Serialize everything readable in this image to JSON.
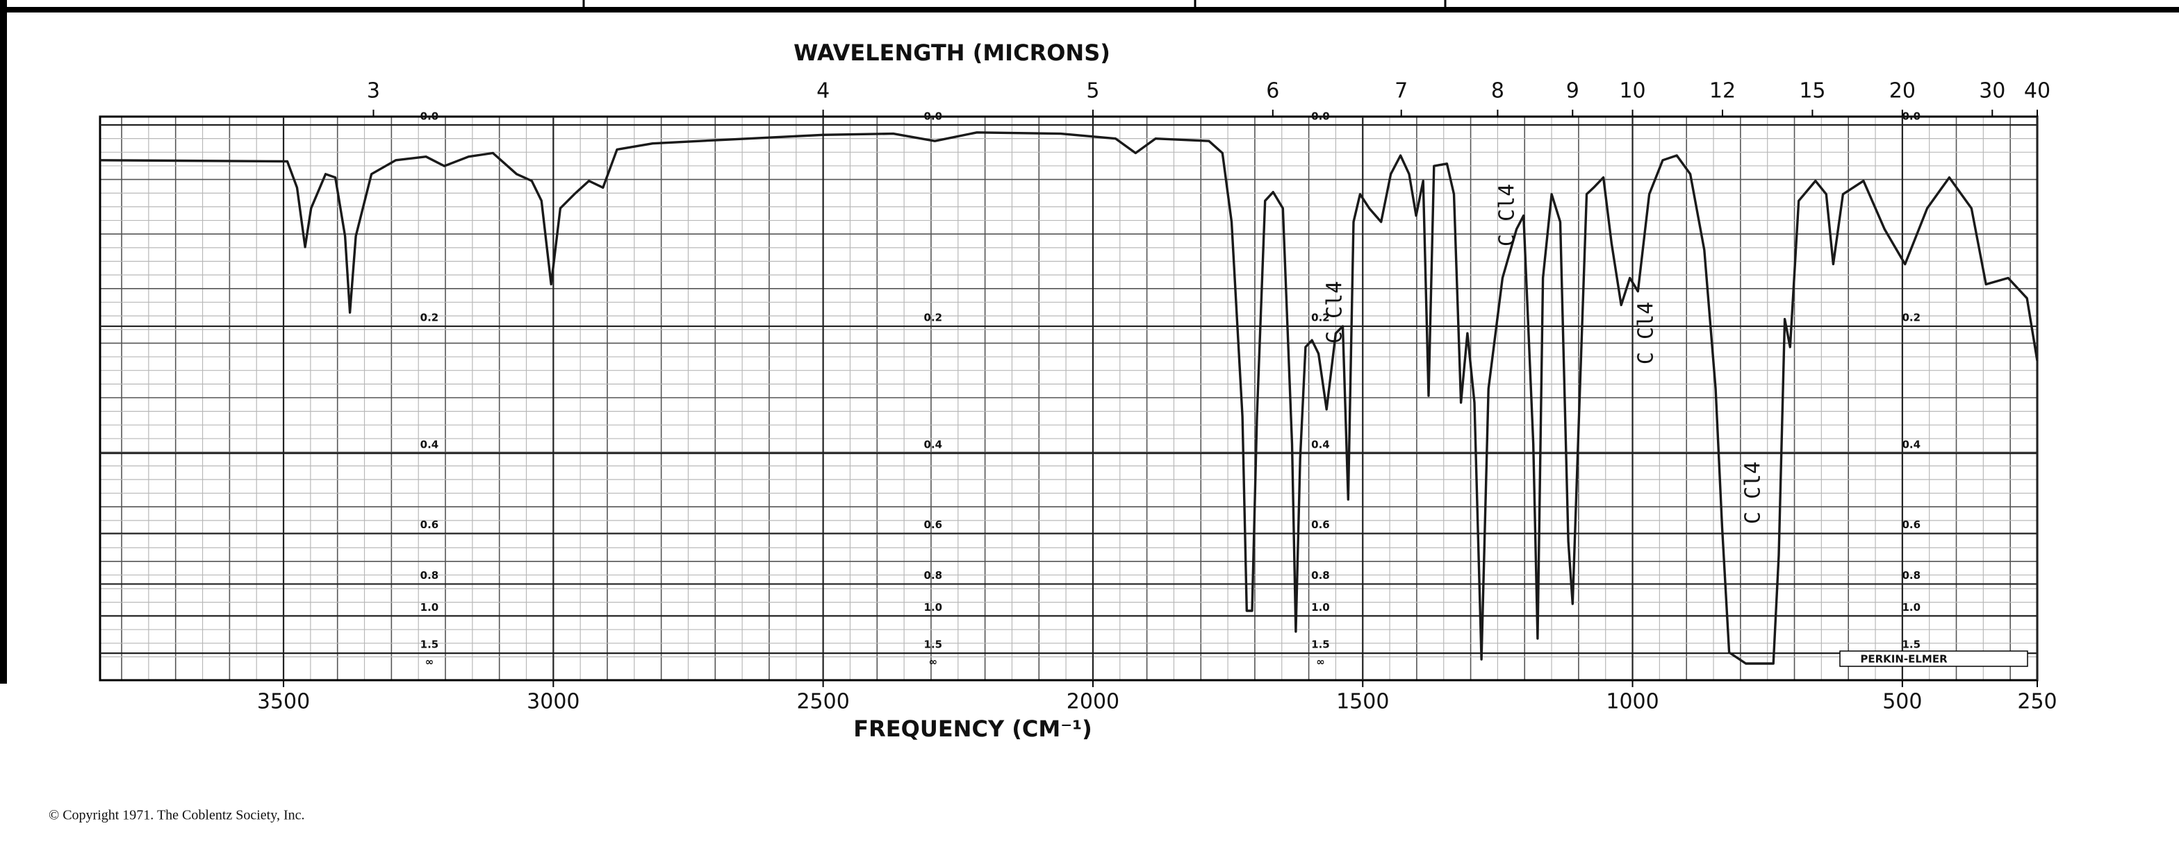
{
  "chart_data": {
    "type": "line",
    "title": "WAVELENGTH (MICRONS)",
    "x_label": "FREQUENCY (CM⁻¹)",
    "xlim": [
      3840,
      250
    ],
    "xticks": [
      3500,
      3000,
      2500,
      2000,
      1500,
      1000,
      500,
      250
    ],
    "x2ticks": [
      3,
      4,
      5,
      6,
      7,
      8,
      9,
      10,
      12,
      15,
      20,
      30,
      40
    ],
    "yscale": "absorbance on linear transmittance",
    "yticks": [
      {
        "value": 0,
        "label": "0.0"
      },
      0.2,
      0.4,
      0.6,
      0.8,
      {
        "value": 1,
        "label": "1.0"
      },
      1.5,
      {
        "value": null,
        "label": "∞"
      }
    ],
    "grid": true,
    "color": "#1a1a1a",
    "x": [
      3840,
      3493,
      3475,
      3460,
      3449,
      3422,
      3404,
      3386,
      3377,
      3366,
      3337,
      3292,
      3236,
      3202,
      3157,
      3112,
      3068,
      3040,
      3022,
      3004,
      2987,
      2961,
      2934,
      2908,
      2882,
      2816,
      2684,
      2500,
      2370,
      2293,
      2215,
      2060,
      1958,
      1921,
      1884,
      1785,
      1760,
      1743,
      1723,
      1715,
      1705,
      1696,
      1681,
      1666,
      1648,
      1631,
      1624,
      1616,
      1606,
      1594,
      1582,
      1567,
      1550,
      1537,
      1527,
      1517,
      1505,
      1488,
      1466,
      1448,
      1430,
      1414,
      1401,
      1388,
      1378,
      1368,
      1344,
      1331,
      1318,
      1306,
      1293,
      1280,
      1267,
      1241,
      1215,
      1202,
      1184,
      1176,
      1166,
      1150,
      1134,
      1119,
      1111,
      1101,
      1085,
      1072,
      1054,
      1039,
      1021,
      1005,
      990,
      969,
      944,
      918,
      893,
      867,
      846,
      834,
      821,
      790,
      739,
      729,
      718,
      708,
      692,
      661,
      641,
      628,
      610,
      572,
      533,
      495,
      454,
      413,
      372,
      345,
      304,
      269,
      250
    ],
    "values": [
      0.029,
      0.03,
      0.053,
      0.11,
      0.072,
      0.041,
      0.044,
      0.099,
      0.183,
      0.099,
      0.041,
      0.029,
      0.026,
      0.034,
      0.026,
      0.023,
      0.041,
      0.047,
      0.065,
      0.15,
      0.072,
      0.059,
      0.047,
      0.053,
      0.02,
      0.015,
      0.012,
      0.008,
      0.007,
      0.013,
      0.006,
      0.007,
      0.011,
      0.023,
      0.011,
      0.013,
      0.023,
      0.085,
      0.332,
      0.961,
      0.961,
      0.332,
      0.065,
      0.057,
      0.072,
      0.382,
      1.147,
      0.41,
      0.227,
      0.218,
      0.236,
      0.32,
      0.209,
      0.2,
      0.504,
      0.085,
      0.059,
      0.072,
      0.085,
      0.041,
      0.025,
      0.041,
      0.079,
      0.047,
      0.298,
      0.034,
      0.032,
      0.059,
      0.309,
      0.209,
      0.309,
      1.691,
      0.287,
      0.143,
      0.092,
      0.079,
      0.382,
      1.233,
      0.143,
      0.059,
      0.085,
      0.626,
      0.913,
      0.382,
      0.059,
      0.053,
      0.044,
      0.106,
      0.174,
      0.143,
      0.158,
      0.059,
      0.029,
      0.025,
      0.041,
      0.113,
      0.287,
      0.582,
      1.48,
      1.895,
      1.895,
      0.675,
      0.191,
      0.227,
      0.065,
      0.047,
      0.059,
      0.128,
      0.059,
      0.047,
      0.092,
      0.128,
      0.072,
      0.044,
      0.072,
      0.15,
      0.143,
      0.166,
      0.246
    ],
    "annotations": [
      "C Cl4",
      "C Cl4",
      "C Cl4",
      "C Cl4"
    ],
    "instrument": "PERKIN-ELMER",
    "copyright": "© Copyright 1971.  The Coblentz Society, Inc."
  }
}
